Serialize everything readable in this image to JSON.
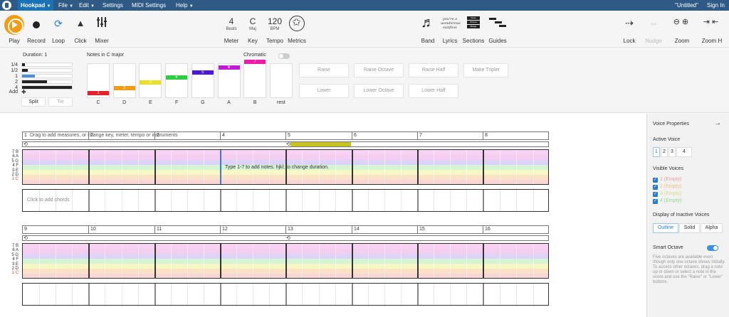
{
  "menubar": {
    "brand": "Hookpad",
    "items": [
      "File",
      "Edit",
      "Settings",
      "MIDI Settings",
      "Help"
    ],
    "doc_title": "\"Untitled\"",
    "sign_in": "Sign In"
  },
  "toolbar": {
    "play": "Play",
    "record": "Record",
    "loop": "Loop",
    "click": "Click",
    "mixer": "Mixer",
    "meter_value": "4",
    "meter_sub": "Beats",
    "meter": "Meter",
    "key_value": "C",
    "key_sub": "Maj",
    "key": "Key",
    "tempo_value": "120",
    "tempo_sub": "BPM",
    "tempo": "Tempo",
    "metrics": "Metrics",
    "band": "Band",
    "lyrics": "Lyrics",
    "sections": "Sections",
    "guides": "Guides",
    "lyrics_icon_lines": [
      "you're a",
      "wonderous",
      "sunflow"
    ],
    "sections_icon_lines": [
      "Verse",
      "Chorus",
      "Bridge"
    ],
    "lock": "Lock",
    "nudge": "Nudge",
    "zoom": "Zoom",
    "zoom_h": "Zoom H"
  },
  "notepanel": {
    "duration_title": "Duration: 1",
    "durations": [
      {
        "label": "1/4",
        "fill": 0.06,
        "color": "#222222"
      },
      {
        "label": "1/2",
        "fill": 0.12,
        "color": "#222222"
      },
      {
        "label": "1",
        "fill": 0.25,
        "color": "#4a90d9"
      },
      {
        "label": "2",
        "fill": 0.5,
        "color": "#222222"
      },
      {
        "label": "4",
        "fill": 1.0,
        "color": "#222222"
      }
    ],
    "add": "Add",
    "add_icon": "✚",
    "split": "Split",
    "tie": "Tie",
    "notes_title": "Notes in C major",
    "chromatic": "Chromatic",
    "keys": [
      {
        "label": "C",
        "num": "1",
        "color": "#e8202a",
        "level": 0
      },
      {
        "label": "D",
        "num": "2",
        "color": "#f39c12",
        "level": 1
      },
      {
        "label": "E",
        "num": "3",
        "color": "#e8e020",
        "level": 2
      },
      {
        "label": "F",
        "num": "4",
        "color": "#2ecc40",
        "level": 3
      },
      {
        "label": "G",
        "num": "5",
        "color": "#4a18d8",
        "level": 4
      },
      {
        "label": "A",
        "num": "6",
        "color": "#c21bd6",
        "level": 5
      },
      {
        "label": "B",
        "num": "7",
        "color": "#f01aa8",
        "level": 6
      },
      {
        "label": "rest",
        "num": "",
        "color": "",
        "level": -1
      }
    ],
    "buttons": {
      "raise": "Raise",
      "raise_octave": "Raise Octave",
      "raise_half": "Raise Half",
      "make_triplet": "Make Triplet",
      "lower": "Lower",
      "lower_octave": "Lower Octave",
      "lower_half": "Lower Half"
    }
  },
  "score": {
    "measure_hint": "Drag to add measures, or change key, meter, tempo or instruments",
    "staff_hint": "Type 1-7 to add notes. hjkl; to change duration.",
    "chord_hint": "Click to add chords",
    "note_labels": [
      "7 B",
      "6 A",
      "5 G",
      "4 F",
      "3 E",
      "2 D",
      "1 C"
    ],
    "system1_measures": [
      "1",
      "2",
      "3",
      "4",
      "5",
      "6",
      "7",
      "8"
    ],
    "system2_measures": [
      "9",
      "10",
      "11",
      "12",
      "13",
      "14",
      "15",
      "16"
    ],
    "loop_icon": "⟲",
    "lane_colors": [
      "#f7d2f2",
      "#f4cdf0",
      "#ddd2f7",
      "#d6f4d3",
      "#f7f7c6",
      "#fbe2c7",
      "#f9d6d6"
    ]
  },
  "right_panel": {
    "title": "Voice Properties",
    "arrow": "→",
    "active_voice": "Active Voice",
    "voices": [
      "1",
      "2",
      "3",
      "4"
    ],
    "visible_voices": "Visible Voices",
    "visible": [
      {
        "num": "1",
        "state": "(Empty)",
        "color": "#e8a0a0"
      },
      {
        "num": "2",
        "state": "(Empty)",
        "color": "#f0c080"
      },
      {
        "num": "3",
        "state": "(Empty)",
        "color": "#d8d890"
      },
      {
        "num": "4",
        "state": "(Empty)",
        "color": "#90d890"
      }
    ],
    "inactive_title": "Display of Inactive Voices",
    "inactive_opts": [
      "Outline",
      "Solid",
      "Alpha"
    ],
    "smart_octave": "Smart Octave",
    "smart_text": "Five octaves are available even though only one octave shows initially. To access other octaves, drag a note up or down or select a note in the score and use the \"Raise\" or \"Lower\" buttons."
  }
}
